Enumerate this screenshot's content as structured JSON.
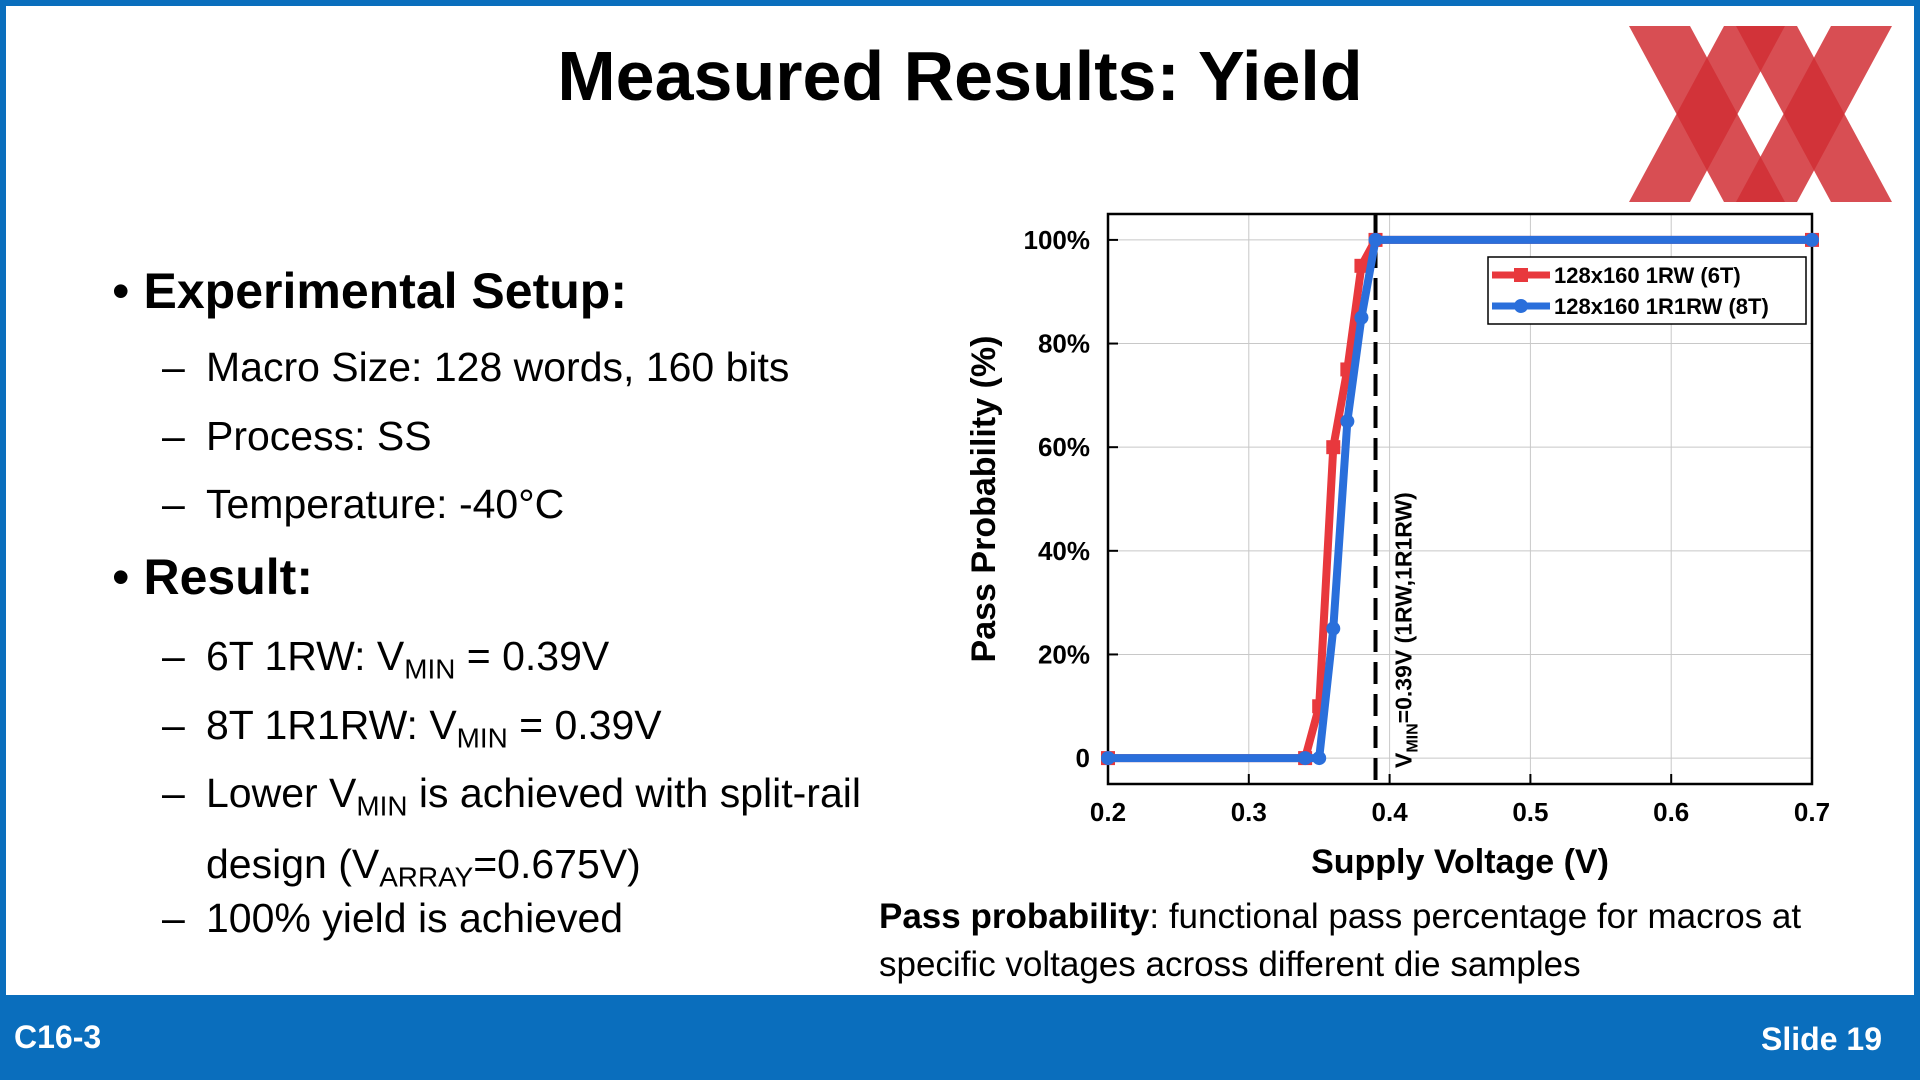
{
  "title": "Measured Results: Yield",
  "sections": [
    {
      "heading": "Experimental Setup:",
      "items": [
        [
          "Macro Size: 128 words, 160 bits"
        ],
        [
          "Process: SS"
        ],
        [
          "Temperature: -40°C"
        ]
      ]
    },
    {
      "heading": "Result:",
      "items": [
        [
          "6T 1RW: V",
          "MIN",
          " = 0.39V"
        ],
        [
          "8T 1R1RW: V",
          "MIN",
          " = 0.39V"
        ],
        [
          "Lower V",
          "MIN",
          " is achieved with split-rail design (V",
          "ARRAY",
          "=0.675V)"
        ],
        [
          "100% yield is achieved"
        ]
      ]
    }
  ],
  "caption": {
    "term": "Pass probability",
    "text": ": functional pass percentage for macros at specific voltages across different die samples"
  },
  "footer": {
    "left": "C16-3",
    "right": "Slide 19"
  },
  "chart_data": {
    "type": "line",
    "xlabel": "Supply Voltage (V)",
    "ylabel": "Pass Probability (%)",
    "xlim": [
      0.2,
      0.7
    ],
    "xticks": [
      0.2,
      0.3,
      0.4,
      0.5,
      0.6,
      0.7
    ],
    "ylim": [
      -5,
      105
    ],
    "yticks": [
      0,
      {
        "value": 20,
        "label": "20%"
      },
      {
        "value": 40,
        "label": "40%"
      },
      {
        "value": 60,
        "label": "60%"
      },
      {
        "value": 80,
        "label": "80%"
      },
      {
        "value": 100,
        "label": "100%"
      }
    ],
    "grid": true,
    "legend": "upper right",
    "series": [
      {
        "name": "128x160 1RW (6T)",
        "color": "#e8383d",
        "marker": "square",
        "x": [
          0.2,
          0.34,
          0.35,
          0.36,
          0.37,
          0.38,
          0.39,
          0.7
        ],
        "values": [
          0,
          0,
          10,
          60,
          75,
          95,
          100,
          100
        ]
      },
      {
        "name": "128x160 1R1RW (8T)",
        "color": "#2a6fdb",
        "marker": "circle",
        "x": [
          0.2,
          0.34,
          0.35,
          0.36,
          0.37,
          0.38,
          0.39,
          0.7
        ],
        "values": [
          0,
          0,
          0,
          25,
          65,
          85,
          100,
          100
        ]
      }
    ],
    "vline": {
      "x": 0.39,
      "label": [
        "V",
        "MIN",
        "=0.39V (1RW,1R1RW)"
      ]
    }
  }
}
